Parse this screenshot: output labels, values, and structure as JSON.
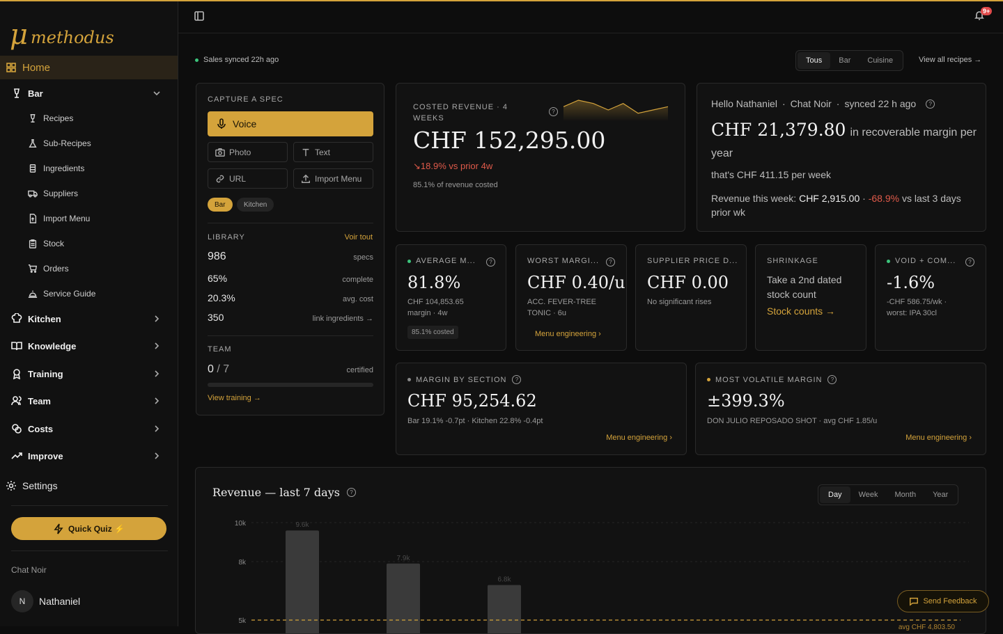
{
  "brand": {
    "mu": "μ",
    "name": "methodus"
  },
  "sidebar": {
    "home": "Home",
    "bar": "Bar",
    "bar_items": [
      "Recipes",
      "Sub-Recipes",
      "Ingredients",
      "Suppliers",
      "Import Menu",
      "Stock",
      "Orders",
      "Service Guide"
    ],
    "sections": [
      "Kitchen",
      "Knowledge",
      "Training",
      "Team",
      "Costs",
      "Improve"
    ],
    "settings": "Settings",
    "quiz": "Quick Quiz ⚡",
    "org": "Chat Noir",
    "user_initial": "N",
    "user_name": "Nathaniel"
  },
  "header": {
    "notif_badge": "9+"
  },
  "sync": "Sales synced 22h ago",
  "filter": {
    "options": [
      "Tous",
      "Bar",
      "Cuisine"
    ],
    "active": "Tous"
  },
  "view_all": "View all recipes →",
  "capture": {
    "title": "CAPTURE A SPEC",
    "voice": "Voice",
    "photo": "Photo",
    "text": "Text",
    "url": "URL",
    "import": "Import Menu",
    "chips": [
      "Bar",
      "Kitchen"
    ]
  },
  "library": {
    "title": "LIBRARY",
    "see_all": "Voir tout",
    "rows": [
      {
        "v": "986",
        "k": "specs"
      },
      {
        "v": "65%",
        "k": "complete"
      },
      {
        "v": "20.3%",
        "k": "avg. cost"
      },
      {
        "v": "350",
        "k": "link ingredients →"
      }
    ]
  },
  "team": {
    "title": "TEAM",
    "value": "0",
    "slash": "/",
    "total": "7",
    "k": "certified",
    "link": "View training  →",
    "progress": 0
  },
  "revenue_card": {
    "label": "COSTED REVENUE · 4 WEEKS",
    "value": "CHF 152,295.00",
    "delta": "↘18.9% vs prior 4w",
    "sub": "85.1% of revenue costed",
    "spark": [
      7,
      9,
      8,
      6,
      8,
      5,
      6,
      7
    ]
  },
  "hello": {
    "greeting": "Hello Nathaniel",
    "org": "Chat Noir",
    "synced": "synced 22 h ago",
    "value": "CHF 21,379.80",
    "value_suffix": "in recoverable margin per",
    "year": "year",
    "per_week": "that's CHF 411.15 per week",
    "rev_prefix": "Revenue this week:",
    "rev_value": "CHF 2,915.00",
    "rev_sep": " · ",
    "rev_delta": "-68.9%",
    "rev_suffix": "vs last 3 days",
    "rev_suffix2": "prior wk"
  },
  "kpis": [
    {
      "label": "AVERAGE M...",
      "value": "81.8%",
      "sub1": "CHF 104,853.65",
      "sub2": "margin · 4w",
      "chip": "85.1% costed"
    },
    {
      "label": "WORST MARGI...",
      "value": "CHF 0.40/u",
      "sub1": "ACC. FEVER-TREE",
      "sub2": "TONIC · 6u",
      "link": "Menu engineering  ›"
    },
    {
      "label": "SUPPLIER PRICE D...",
      "value": "CHF 0.00",
      "sub1": "No significant rises"
    },
    {
      "label": "SHRINKAGE",
      "text1": "Take a 2nd dated",
      "text2": "stock count",
      "link": "Stock counts →"
    },
    {
      "label": "VOID + COM...",
      "value": "-1.6%",
      "sub1": "-CHF 586.75/wk ·",
      "sub2": "worst: IPA 30cl"
    }
  ],
  "margin_section": {
    "label": "MARGIN BY SECTION",
    "value": "CHF 95,254.62",
    "sub": "Bar 19.1% -0.7pt · Kitchen 22.8% -0.4pt",
    "link": "Menu engineering  ›"
  },
  "volatile": {
    "label": "MOST VOLATILE MARGIN",
    "value": "±399.3%",
    "sub": "DON JULIO REPOSADO SHOT · avg CHF 1.85/u",
    "link": "Menu engineering  ›"
  },
  "chart": {
    "title": "Revenue — last 7 days",
    "periods": [
      "Day",
      "Week",
      "Month",
      "Year"
    ],
    "active_period": "Day"
  },
  "chart_data": {
    "type": "bar",
    "title": "Revenue — last 7 days",
    "y_ticks": [
      "10k",
      "8k",
      "5k"
    ],
    "ylim": [
      5000,
      10000
    ],
    "bars": [
      {
        "label": "9.6k",
        "value": 9600
      },
      {
        "label": "7.9k",
        "value": 7900
      },
      {
        "label": "6.8k",
        "value": 6800
      }
    ],
    "avg_label": "avg CHF 4,803.50",
    "avg_value": 4803.5
  },
  "feedback": "Send Feedback"
}
